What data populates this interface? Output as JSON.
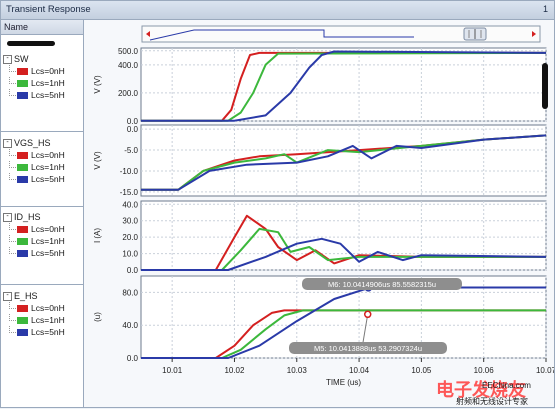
{
  "window": {
    "title": "Transient Response",
    "number": "1"
  },
  "panel": {
    "header": "Name"
  },
  "groups": [
    {
      "name": "SW",
      "items": [
        "Lcs=0nH",
        "Lcs=1nH",
        "Lcs=5nH"
      ]
    },
    {
      "name": "VGS_HS",
      "items": [
        "Lcs=0nH",
        "Lcs=1nH",
        "Lcs=5nH"
      ]
    },
    {
      "name": "ID_HS",
      "items": [
        "Lcs=0nH",
        "Lcs=1nH",
        "Lcs=5nH"
      ]
    },
    {
      "name": "E_HS",
      "items": [
        "Lcs=0nH",
        "Lcs=1nH",
        "Lcs=5nH"
      ]
    }
  ],
  "colors": {
    "lcs0": "#d42020",
    "lcs1": "#3cb83c",
    "lcs5": "#2a3aa8"
  },
  "axes": {
    "sw": {
      "ylabel": "V (V)",
      "ticks": [
        "500.0",
        "400.0",
        "200.0",
        "0.0"
      ]
    },
    "vgs": {
      "ylabel": "V (V)",
      "ticks": [
        "0.0",
        "-5.0",
        "-10.0",
        "-15.0"
      ]
    },
    "id": {
      "ylabel": "I (A)",
      "ticks": [
        "40.0",
        "30.0",
        "20.0",
        "10.0",
        "0.0"
      ]
    },
    "e": {
      "ylabel": "(u)",
      "ticks": [
        "80.0",
        "40.0",
        "0.0"
      ]
    },
    "x": {
      "label": "TIME (us)",
      "ticks": [
        "10.01",
        "10.02",
        "10.03",
        "10.04",
        "10.05",
        "10.06",
        "10.07"
      ]
    }
  },
  "markers": {
    "m6": "M6: 10.0414906us 85.5582315u",
    "m5": "M5: 10.0413888us 53.2907324u"
  },
  "watermark": {
    "big": "电子发烧友",
    "url": "EEChina.com",
    "small": "射频和无线设计专家"
  },
  "chart_data": {
    "type": "line",
    "xlabel": "TIME (us)",
    "xlim": [
      10.005,
      10.07
    ],
    "panels": [
      {
        "name": "SW",
        "ylabel": "V (V)",
        "ylim": [
          0,
          520
        ],
        "series": [
          {
            "name": "Lcs=0nH",
            "x": [
              10.005,
              10.018,
              10.0195,
              10.021,
              10.0225,
              10.024,
              10.07
            ],
            "y": [
              2,
              2,
              80,
              300,
              470,
              485,
              485
            ]
          },
          {
            "name": "Lcs=1nH",
            "x": [
              10.005,
              10.019,
              10.021,
              10.023,
              10.025,
              10.027,
              10.07
            ],
            "y": [
              2,
              2,
              60,
              200,
              400,
              480,
              485
            ]
          },
          {
            "name": "Lcs=5nH",
            "x": [
              10.005,
              10.02,
              10.025,
              10.029,
              10.032,
              10.034,
              10.036,
              10.07
            ],
            "y": [
              2,
              2,
              40,
              200,
              380,
              470,
              495,
              485
            ]
          }
        ]
      },
      {
        "name": "VGS_HS",
        "ylabel": "V (V)",
        "ylim": [
          -16,
          1
        ],
        "series": [
          {
            "name": "Lcs=0nH",
            "x": [
              10.005,
              10.011,
              10.015,
              10.02,
              10.024,
              10.03,
              10.04,
              10.05,
              10.06,
              10.07
            ],
            "y": [
              -14.5,
              -14.5,
              -10,
              -7.5,
              -6.5,
              -6,
              -5,
              -4,
              -2.5,
              -1.5
            ]
          },
          {
            "name": "Lcs=1nH",
            "x": [
              10.005,
              10.011,
              10.015,
              10.02,
              10.025,
              10.028,
              10.03,
              10.035,
              10.04,
              10.05,
              10.06,
              10.07
            ],
            "y": [
              -14.5,
              -14.5,
              -10,
              -8,
              -7,
              -6,
              -8,
              -5,
              -5.5,
              -4,
              -2.5,
              -1.5
            ]
          },
          {
            "name": "Lcs=5nH",
            "x": [
              10.005,
              10.011,
              10.016,
              10.022,
              10.03,
              10.035,
              10.039,
              10.042,
              10.046,
              10.05,
              10.06,
              10.07
            ],
            "y": [
              -14.5,
              -14.5,
              -10,
              -8.5,
              -8,
              -6.5,
              -4,
              -7,
              -4,
              -4.5,
              -2.5,
              -1.5
            ]
          }
        ]
      },
      {
        "name": "ID_HS",
        "ylabel": "I (A)",
        "ylim": [
          0,
          42
        ],
        "series": [
          {
            "name": "Lcs=0nH",
            "x": [
              10.005,
              10.017,
              10.02,
              10.022,
              10.025,
              10.027,
              10.03,
              10.033,
              10.036,
              10.04,
              10.05,
              10.07
            ],
            "y": [
              0,
              0,
              20,
              33,
              25,
              14,
              6,
              12,
              4,
              9,
              8,
              8
            ]
          },
          {
            "name": "Lcs=1nH",
            "x": [
              10.005,
              10.018,
              10.021,
              10.024,
              10.027,
              10.029,
              10.032,
              10.035,
              10.04,
              10.05,
              10.07
            ],
            "y": [
              0,
              0,
              12,
              25,
              23,
              11,
              14,
              6,
              8,
              8,
              8
            ]
          },
          {
            "name": "Lcs=5nH",
            "x": [
              10.005,
              10.019,
              10.025,
              10.03,
              10.034,
              10.037,
              10.04,
              10.043,
              10.047,
              10.05,
              10.07
            ],
            "y": [
              0,
              0,
              8,
              16,
              19,
              16,
              5,
              11,
              6,
              9,
              8
            ]
          }
        ]
      },
      {
        "name": "E_HS",
        "ylabel": "(u)",
        "ylim": [
          0,
          100
        ],
        "series": [
          {
            "name": "Lcs=0nH",
            "x": [
              10.005,
              10.017,
              10.02,
              10.023,
              10.026,
              10.028,
              10.07
            ],
            "y": [
              0,
              0,
              15,
              40,
              55,
              58,
              58
            ]
          },
          {
            "name": "Lcs=1nH",
            "x": [
              10.005,
              10.018,
              10.021,
              10.025,
              10.028,
              10.031,
              10.07
            ],
            "y": [
              0,
              0,
              10,
              35,
              52,
              58,
              58
            ]
          },
          {
            "name": "Lcs=5nH",
            "x": [
              10.005,
              10.019,
              10.024,
              10.03,
              10.036,
              10.041,
              10.045,
              10.07
            ],
            "y": [
              0,
              0,
              15,
              45,
              72,
              84,
              86,
              86
            ]
          }
        ]
      }
    ]
  }
}
